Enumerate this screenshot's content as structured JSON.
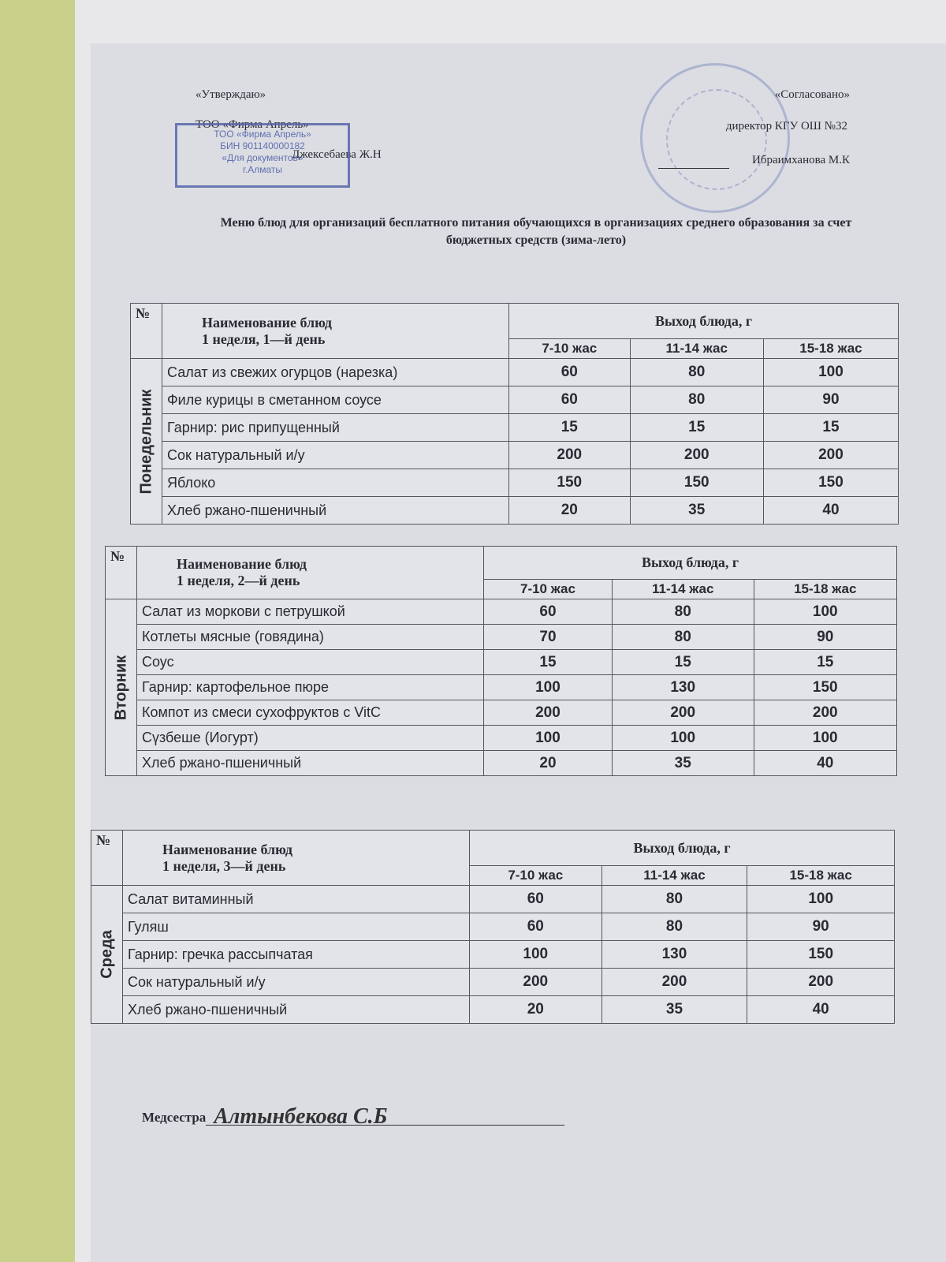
{
  "approval_left": {
    "heading": "«Утверждаю»",
    "org": "ТОО «Фирма Апрель»",
    "name": "Джексебаева Ж.Н"
  },
  "stamp": {
    "line1": "ТОО «Фирма Апрель»",
    "line2": "БИН 901140000182",
    "line3": "«Для документов»",
    "line4": "г.Алматы"
  },
  "approval_right": {
    "heading": "«Согласовано»",
    "position": "директор КГУ ОШ №32",
    "name": "Ибраимханова М.К"
  },
  "title": "Меню блюд для организаций бесплатного питания обучающихся в организациях среднего образования за счет бюджетных средств (зима-лето)",
  "tables": [
    {
      "no": "№",
      "dish_header": "Наименование блюд",
      "week_day": "1 неделя, 1—й день",
      "yield_header": "Выход блюда, г",
      "ages": [
        "7-10 жас",
        "11-14 жас",
        "15-18 жас"
      ],
      "day": "Понедельник",
      "rows": [
        [
          "Салат из свежих огурцов (нарезка)",
          "60",
          "80",
          "100"
        ],
        [
          "Филе курицы в сметанном соусе",
          "60",
          "80",
          "90"
        ],
        [
          "Гарнир: рис припущенный",
          "15",
          "15",
          "15"
        ],
        [
          "Сок натуральный и/у",
          "200",
          "200",
          "200"
        ],
        [
          "Яблоко",
          "150",
          "150",
          "150"
        ],
        [
          "Хлеб ржано-пшеничный",
          "20",
          "35",
          "40"
        ]
      ]
    },
    {
      "no": "№",
      "dish_header": "Наименование блюд",
      "week_day": "1 неделя, 2—й день",
      "yield_header": "Выход блюда, г",
      "ages": [
        "7-10 жас",
        "11-14 жас",
        "15-18 жас"
      ],
      "day": "Вторник",
      "rows": [
        [
          "Салат из моркови с петрушкой",
          "60",
          "80",
          "100"
        ],
        [
          "Котлеты мясные (говядина)",
          "70",
          "80",
          "90"
        ],
        [
          "Соус",
          "15",
          "15",
          "15"
        ],
        [
          "Гарнир: картофельное пюре",
          "100",
          "130",
          "150"
        ],
        [
          "Компот из смеси сухофруктов с VitC",
          "200",
          "200",
          "200"
        ],
        [
          "Сүзбеше (Иогурт)",
          "100",
          "100",
          "100"
        ],
        [
          "Хлеб ржано-пшеничный",
          "20",
          "35",
          "40"
        ]
      ]
    },
    {
      "no": "№",
      "dish_header": "Наименование блюд",
      "week_day": "1 неделя, 3—й день",
      "yield_header": "Выход блюда, г",
      "ages": [
        "7-10 жас",
        "11-14 жас",
        "15-18 жас"
      ],
      "day": "Среда",
      "rows": [
        [
          "Салат витаминный",
          "60",
          "80",
          "100"
        ],
        [
          "Гуляш",
          "60",
          "80",
          "90"
        ],
        [
          "Гарнир: гречка рассыпчатая",
          "100",
          "130",
          "150"
        ],
        [
          "Сок натуральный и/у",
          "200",
          "200",
          "200"
        ],
        [
          "Хлеб ржано-пшеничный",
          "20",
          "35",
          "40"
        ]
      ]
    }
  ],
  "nurse": {
    "label": "Медсестра",
    "signature": "Алтынбекова С.Б"
  }
}
